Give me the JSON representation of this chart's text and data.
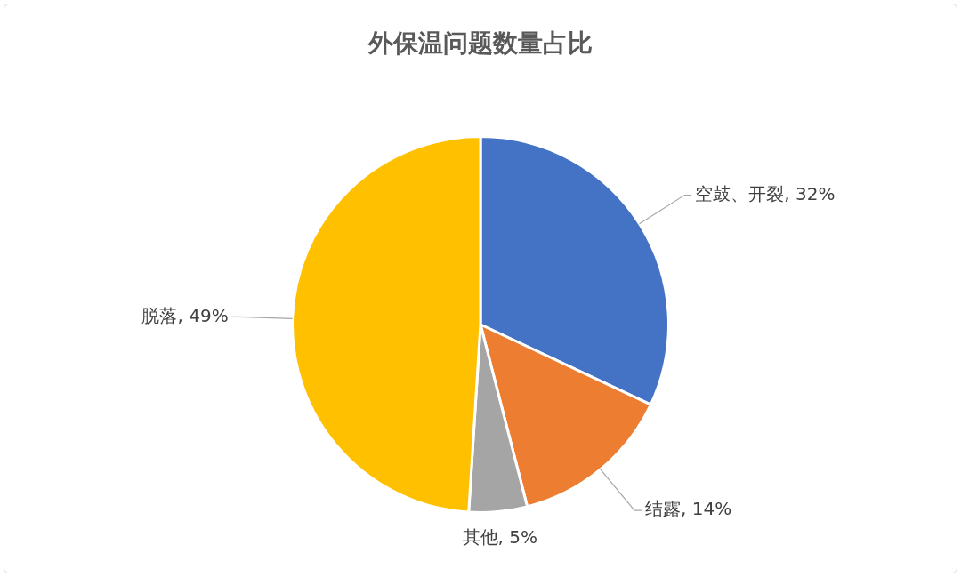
{
  "chart_data": {
    "type": "pie",
    "title": "外保温问题数量占比",
    "categories": [
      "空鼓、开裂",
      "结露",
      "其他",
      "脱落"
    ],
    "values": [
      32,
      14,
      5,
      49
    ],
    "value_labels": [
      "32%",
      "14%",
      "5%",
      "49%"
    ],
    "colors": [
      "#4472c4",
      "#ed7d31",
      "#a5a5a5",
      "#ffc000"
    ],
    "legend": false
  }
}
